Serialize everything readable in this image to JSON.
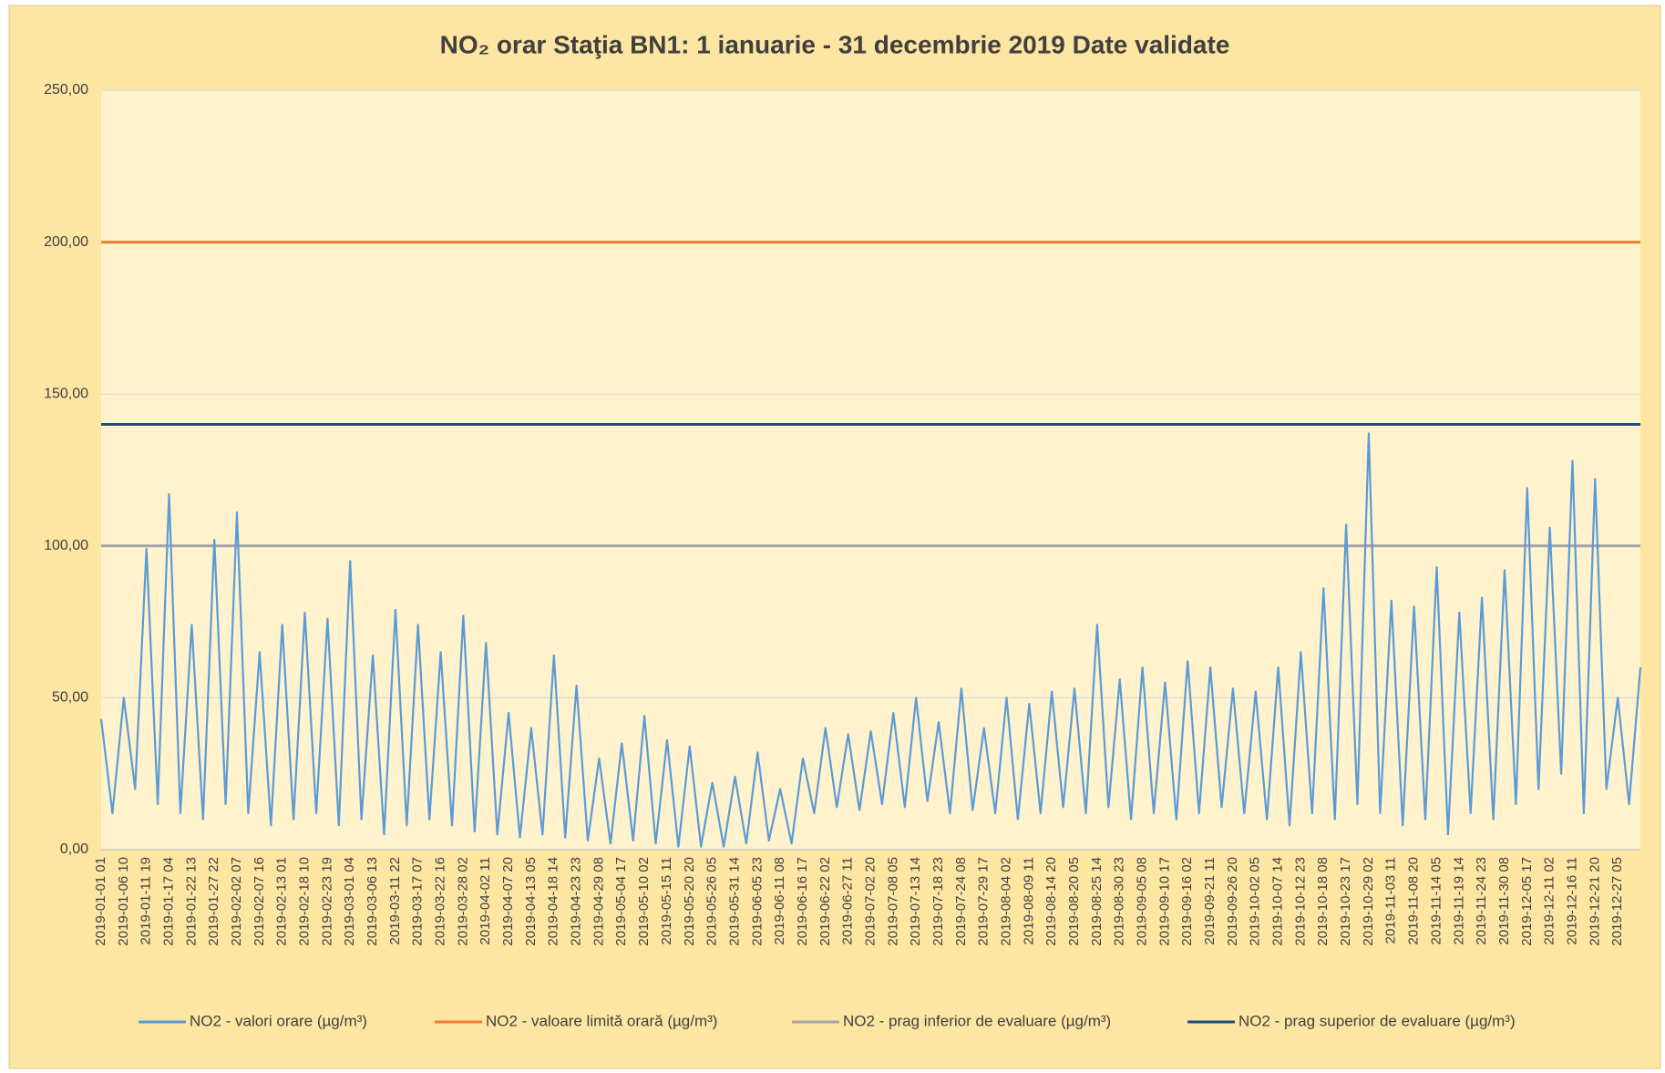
{
  "chart_data": {
    "type": "line",
    "title": "NO₂ orar Staţia BN1: 1 ianuarie - 31 decembrie 2019 Date validate",
    "categories": [
      "2019-01-01 01",
      null,
      "2019-01-06 10",
      null,
      "2019-01-11 19",
      null,
      "2019-01-17 04",
      null,
      "2019-01-22 13",
      null,
      "2019-01-27 22",
      null,
      "2019-02-02 07",
      null,
      "2019-02-07 16",
      null,
      "2019-02-13 01",
      null,
      "2019-02-18 10",
      null,
      "2019-02-23 19",
      null,
      "2019-03-01 04",
      null,
      "2019-03-06 13",
      null,
      "2019-03-11 22",
      null,
      "2019-03-17 07",
      null,
      "2019-03-22 16",
      null,
      "2019-03-28 02",
      null,
      "2019-04-02 11",
      null,
      "2019-04-07 20",
      null,
      "2019-04-13 05",
      null,
      "2019-04-18 14",
      null,
      "2019-04-23 23",
      null,
      "2019-04-29 08",
      null,
      "2019-05-04 17",
      null,
      "2019-05-10 02",
      null,
      "2019-05-15 11",
      null,
      "2019-05-20 20",
      null,
      "2019-05-26 05",
      null,
      "2019-05-31 14",
      null,
      "2019-06-05 23",
      null,
      "2019-06-11 08",
      null,
      "2019-06-16 17",
      null,
      "2019-06-22 02",
      null,
      "2019-06-27 11",
      null,
      "2019-07-02 20",
      null,
      "2019-07-08 05",
      null,
      "2019-07-13 14",
      null,
      "2019-07-18 23",
      null,
      "2019-07-24 08",
      null,
      "2019-07-29 17",
      null,
      "2019-08-04 02",
      null,
      "2019-08-09 11",
      null,
      "2019-08-14 20",
      null,
      "2019-08-20 05",
      null,
      "2019-08-25 14",
      null,
      "2019-08-30 23",
      null,
      "2019-09-05 08",
      null,
      "2019-09-10 17",
      null,
      "2019-09-16 02",
      null,
      "2019-09-21 11",
      null,
      "2019-09-26 20",
      null,
      "2019-10-02 05",
      null,
      "2019-10-07 14",
      null,
      "2019-10-12 23",
      null,
      "2019-10-18 08",
      null,
      "2019-10-23 17",
      null,
      "2019-10-29 02",
      null,
      "2019-11-03 11",
      null,
      "2019-11-08 20",
      null,
      "2019-11-14 05",
      null,
      "2019-11-19 14",
      null,
      "2019-11-24 23",
      null,
      "2019-11-30 08",
      null,
      "2019-12-05 17",
      null,
      "2019-12-11 02",
      null,
      "2019-12-16 11",
      null,
      "2019-12-21 20",
      null,
      "2019-12-27 05",
      null,
      null
    ],
    "series": [
      {
        "name": "NO2 - valori orare (µg/m³)",
        "color": "#5b9bd5",
        "values": [
          43,
          12,
          50,
          20,
          99,
          15,
          117,
          12,
          74,
          10,
          102,
          15,
          111,
          12,
          65,
          8,
          74,
          10,
          78,
          12,
          76,
          8,
          95,
          10,
          64,
          5,
          79,
          8,
          74,
          10,
          65,
          8,
          77,
          6,
          68,
          5,
          45,
          4,
          40,
          5,
          64,
          4,
          54,
          3,
          30,
          2,
          35,
          3,
          44,
          2,
          36,
          1,
          34,
          1,
          22,
          1,
          24,
          2,
          32,
          3,
          20,
          2,
          30,
          12,
          40,
          14,
          38,
          13,
          39,
          15,
          45,
          14,
          50,
          16,
          42,
          12,
          53,
          13,
          40,
          12,
          50,
          10,
          48,
          12,
          52,
          14,
          53,
          12,
          74,
          14,
          56,
          10,
          60,
          12,
          55,
          10,
          62,
          12,
          60,
          14,
          53,
          12,
          52,
          10,
          60,
          8,
          65,
          12,
          86,
          10,
          107,
          15,
          137,
          12,
          82,
          8,
          80,
          10,
          93,
          5,
          78,
          12,
          83,
          10,
          92,
          15,
          119,
          20,
          106,
          25,
          128,
          12,
          122,
          20,
          50,
          15,
          60
        ]
      }
    ],
    "reference_lines": [
      {
        "name": "NO2 - valoare limită orară (µg/m³)",
        "color": "#ed7d31",
        "value": 200
      },
      {
        "name": "NO2 - prag inferior de evaluare (µg/m³)",
        "color": "#a5a5a5",
        "value": 100
      },
      {
        "name": "NO2 - prag superior de evaluare (µg/m³)",
        "color": "#1f4e79",
        "value": 140
      }
    ],
    "ylim": [
      0,
      250
    ],
    "yticks": [
      {
        "value": 0,
        "label": "0,00"
      },
      {
        "value": 50,
        "label": "50,00"
      },
      {
        "value": 100,
        "label": "100,00"
      },
      {
        "value": 150,
        "label": "150,00"
      },
      {
        "value": 200,
        "label": "200,00"
      },
      {
        "value": 250,
        "label": "250,00"
      }
    ],
    "grid": true,
    "legend": "bottom"
  }
}
